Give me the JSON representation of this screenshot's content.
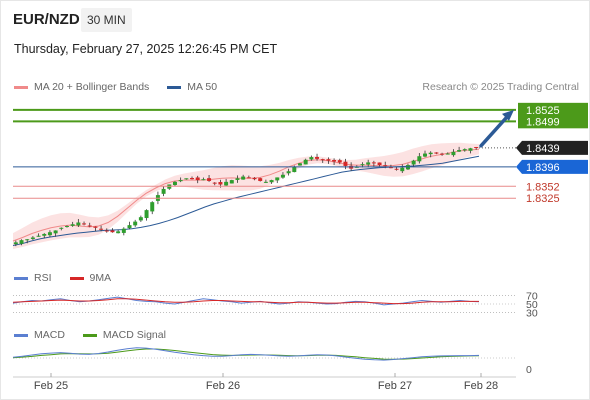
{
  "header": {
    "symbol": "EUR/NZD",
    "timeframe": "30 MIN",
    "datetime": "Thursday, February 27, 2025 12:26:45 PM CET"
  },
  "legend": {
    "main": [
      {
        "label": "MA 20 + Bollinger Bands",
        "color": "#f08a8a"
      },
      {
        "label": "MA 50",
        "color": "#2c5a96"
      }
    ],
    "credit": "Research © 2025 Trading Central",
    "rsi": [
      {
        "label": "RSI",
        "color": "#5b7fd1"
      },
      {
        "label": "9MA",
        "color": "#d62728"
      }
    ],
    "macd": [
      {
        "label": "MACD",
        "color": "#5b7fd1"
      },
      {
        "label": "MACD Signal",
        "color": "#4c9a1a"
      }
    ]
  },
  "colors": {
    "resistance": "#4c9a1a",
    "support": "#e88a8a",
    "current": "#2c5a96",
    "pivot": "#1a66d6",
    "arrow": "#2c5a96",
    "bull_candle": "#2e9e2e",
    "bear_candle": "#d62728"
  },
  "chart_data": [
    {
      "type": "candlestick",
      "title": "EUR/NZD 30 MIN",
      "x_ticks": [
        "Feb 25",
        "Feb 26",
        "Feb 27",
        "Feb 28"
      ],
      "ylim": [
        1.821,
        1.8545
      ],
      "levels": [
        {
          "value": "1.8525",
          "style": "resistance"
        },
        {
          "value": "1.8499",
          "style": "resistance"
        },
        {
          "value": "1.8439",
          "style": "current"
        },
        {
          "value": "1.8396",
          "style": "pivot"
        },
        {
          "value": "1.8352",
          "style": "support"
        },
        {
          "value": "1.8325",
          "style": "support"
        }
      ],
      "close_path": [
        1.8225,
        1.823,
        1.8232,
        1.8236,
        1.824,
        1.8244,
        1.8248,
        1.8252,
        1.8258,
        1.8262,
        1.8266,
        1.827,
        1.8266,
        1.8262,
        1.8258,
        1.8254,
        1.825,
        1.8248,
        1.825,
        1.8256,
        1.8264,
        1.8272,
        1.8282,
        1.8298,
        1.8316,
        1.8332,
        1.8346,
        1.8356,
        1.8362,
        1.8366,
        1.837,
        1.8368,
        1.8366,
        1.8368,
        1.8364,
        1.836,
        1.8356,
        1.8362,
        1.8366,
        1.837,
        1.8374,
        1.8372,
        1.8368,
        1.8364,
        1.8362,
        1.8366,
        1.8372,
        1.8378,
        1.8386,
        1.8396,
        1.8404,
        1.8412,
        1.8418,
        1.8414,
        1.8412,
        1.841,
        1.8408,
        1.8406,
        1.8398,
        1.8392,
        1.8396,
        1.8402,
        1.8406,
        1.8404,
        1.84,
        1.8398,
        1.8394,
        1.839,
        1.8394,
        1.84,
        1.841,
        1.842,
        1.8426,
        1.8428,
        1.8426,
        1.8424,
        1.8426,
        1.843,
        1.8434,
        1.8436,
        1.8438,
        1.8439
      ],
      "ma50": [
        1.8218,
        1.8222,
        1.8228,
        1.8233,
        1.8237,
        1.824,
        1.8243,
        1.8246,
        1.8248,
        1.825,
        1.8252,
        1.8253,
        1.8254,
        1.8256,
        1.8259,
        1.8263,
        1.8268,
        1.8274,
        1.8281,
        1.8289,
        1.8297,
        1.8305,
        1.8312,
        1.8318,
        1.8324,
        1.8329,
        1.8334,
        1.8339,
        1.8344,
        1.8349,
        1.8354,
        1.8359,
        1.8364,
        1.8369,
        1.8374,
        1.8379,
        1.8384,
        1.8387,
        1.839,
        1.8392,
        1.8394,
        1.8395,
        1.8396,
        1.8397,
        1.8398,
        1.84,
        1.8402,
        1.8404,
        1.8408,
        1.8412,
        1.8416,
        1.842
      ],
      "ma20": [
        1.8228,
        1.8236,
        1.8245,
        1.8252,
        1.8258,
        1.8262,
        1.8264,
        1.8262,
        1.826,
        1.8262,
        1.827,
        1.8284,
        1.8302,
        1.832,
        1.8336,
        1.8348,
        1.8358,
        1.8364,
        1.8366,
        1.8366,
        1.8366,
        1.8368,
        1.837,
        1.8371,
        1.837,
        1.837,
        1.8372,
        1.8378,
        1.8386,
        1.8396,
        1.8404,
        1.841,
        1.8412,
        1.841,
        1.8406,
        1.8402,
        1.84,
        1.84,
        1.8399,
        1.8398,
        1.8399,
        1.8402,
        1.8408,
        1.8414,
        1.842,
        1.8424,
        1.8428,
        1.8432,
        1.8434,
        1.8436
      ],
      "bb_band": 0.0018
    },
    {
      "type": "line",
      "title": "RSI",
      "yticks": [
        "70",
        "50",
        "30"
      ],
      "ylim": [
        20,
        80
      ],
      "series": [
        {
          "name": "RSI",
          "values": [
            52,
            55,
            58,
            57,
            60,
            62,
            58,
            55,
            57,
            60,
            63,
            66,
            62,
            58,
            56,
            55,
            52,
            50,
            54,
            58,
            62,
            60,
            57,
            55,
            52,
            54,
            56,
            53,
            50,
            52,
            55,
            54,
            52,
            50,
            51,
            54,
            56,
            55,
            52,
            48,
            50,
            52,
            55,
            58,
            56,
            54,
            56,
            58,
            56,
            55
          ]
        },
        {
          "name": "9MA",
          "values": [
            54,
            55,
            56,
            57,
            58,
            59,
            58,
            57,
            57,
            58,
            60,
            62,
            62,
            61,
            59,
            57,
            55,
            54,
            54,
            55,
            57,
            58,
            58,
            57,
            56,
            55,
            55,
            54,
            53,
            53,
            54,
            54,
            53,
            52,
            52,
            53,
            54,
            54,
            53,
            52,
            51,
            51,
            52,
            54,
            55,
            55,
            55,
            56,
            56,
            56
          ]
        }
      ]
    },
    {
      "type": "line",
      "title": "MACD",
      "yticks": [
        "0"
      ],
      "ylim": [
        -1,
        1
      ],
      "series": [
        {
          "name": "MACD",
          "values": [
            0.05,
            0.12,
            0.2,
            0.28,
            0.33,
            0.36,
            0.32,
            0.26,
            0.24,
            0.3,
            0.4,
            0.52,
            0.62,
            0.68,
            0.66,
            0.58,
            0.48,
            0.38,
            0.3,
            0.22,
            0.16,
            0.12,
            0.12,
            0.16,
            0.22,
            0.24,
            0.22,
            0.18,
            0.14,
            0.12,
            0.14,
            0.18,
            0.22,
            0.2,
            0.14,
            0.06,
            -0.02,
            -0.08,
            -0.12,
            -0.14,
            -0.1,
            -0.04,
            0.02,
            0.08,
            0.12,
            0.14,
            0.15,
            0.16,
            0.16,
            0.17
          ]
        },
        {
          "name": "MACD Signal",
          "values": [
            0.02,
            0.06,
            0.11,
            0.17,
            0.22,
            0.27,
            0.29,
            0.28,
            0.27,
            0.28,
            0.32,
            0.39,
            0.47,
            0.55,
            0.6,
            0.6,
            0.56,
            0.5,
            0.43,
            0.36,
            0.29,
            0.23,
            0.19,
            0.17,
            0.18,
            0.2,
            0.21,
            0.2,
            0.18,
            0.16,
            0.15,
            0.16,
            0.18,
            0.19,
            0.17,
            0.13,
            0.08,
            0.02,
            -0.03,
            -0.07,
            -0.08,
            -0.07,
            -0.04,
            0.0,
            0.04,
            0.08,
            0.11,
            0.13,
            0.14,
            0.15
          ]
        }
      ]
    }
  ]
}
